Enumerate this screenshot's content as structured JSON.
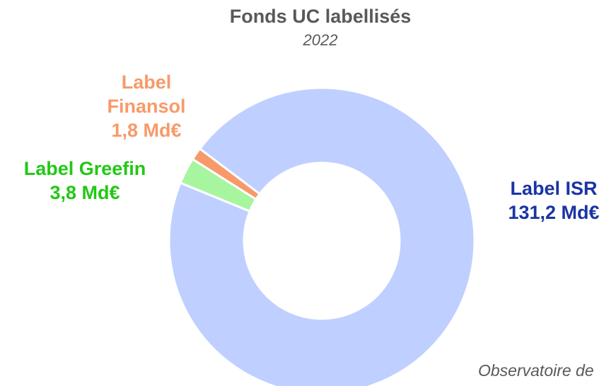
{
  "chart_data": {
    "type": "donut",
    "title": "Fonds UC labellisés",
    "subtitle": "2022",
    "categories": [
      "Label ISR",
      "Label Greefin",
      "Label Finansol"
    ],
    "values": [
      131.2,
      3.8,
      1.8
    ],
    "value_labels": [
      "131,2 Md€",
      "3,8 Md€",
      "1,8 Md€"
    ],
    "colors": [
      "#bfcfff",
      "#a8f5a0",
      "#f79a6a"
    ],
    "label_colors": [
      "#1a34a4",
      "#22c814",
      "#f79a6a"
    ],
    "source": "Observatoire de"
  }
}
